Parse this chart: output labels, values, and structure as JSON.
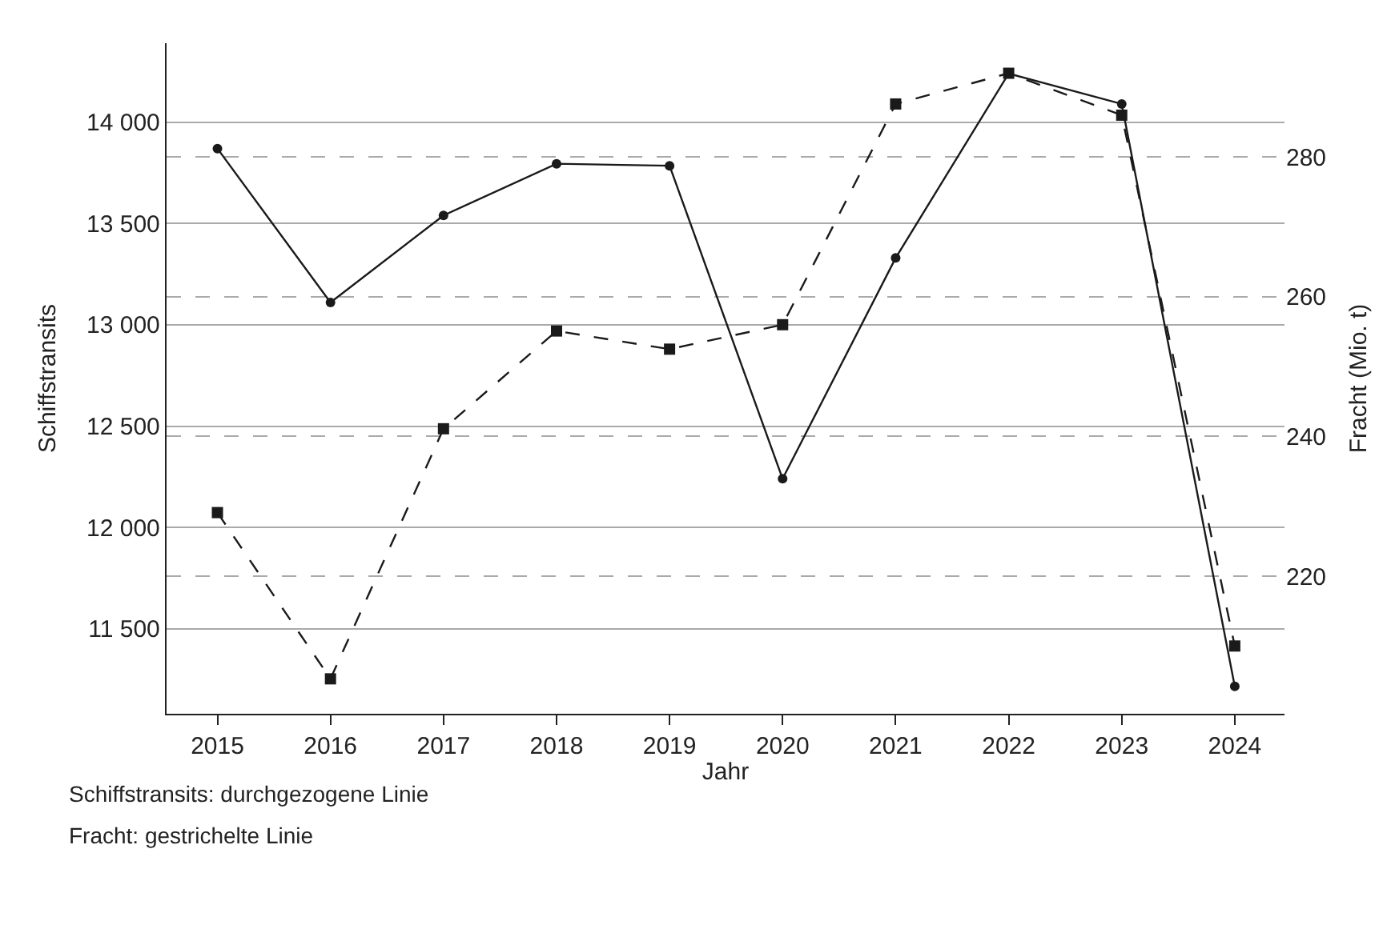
{
  "chart_data": {
    "type": "line",
    "xlabel": "Jahr",
    "ylabel": "Schiffstransits",
    "y2label": "Fracht (Mio. t)",
    "categories": [
      "2015",
      "2016",
      "2017",
      "2018",
      "2019",
      "2020",
      "2021",
      "2022",
      "2023",
      "2024"
    ],
    "series": [
      {
        "color": "#1a1a1a",
        "marker": "circle",
        "line_style": "solid",
        "values": [
          13870,
          13110,
          13540,
          13795,
          13785,
          12240,
          13330,
          14240,
          14090,
          11215
        ]
      },
      {
        "color": "#1a1a1a",
        "marker": "square",
        "line_style": "dashed",
        "axis": "y2",
        "values": [
          229.1,
          205.3,
          241.1,
          255.1,
          252.5,
          256.0,
          287.6,
          292.0,
          286.0,
          210.0
        ]
      }
    ],
    "ylim": [
      11080,
      14390
    ],
    "yticks": [
      {
        "value": 11500,
        "label": "11 500"
      },
      {
        "value": 12000,
        "label": "12 000"
      },
      {
        "value": 12500,
        "label": "12 500"
      },
      {
        "value": 13000,
        "label": "13 000"
      },
      {
        "value": 13500,
        "label": "13 500"
      },
      {
        "value": 14000,
        "label": "14 000"
      }
    ],
    "y2lim": [
      200.3,
      296.3
    ],
    "y2ticks": [
      220,
      240,
      260,
      280
    ],
    "grid": "y",
    "annotations": [
      "Schiffstransits: durchgezogene Linie",
      "Fracht: gestrichelte Linie"
    ]
  }
}
